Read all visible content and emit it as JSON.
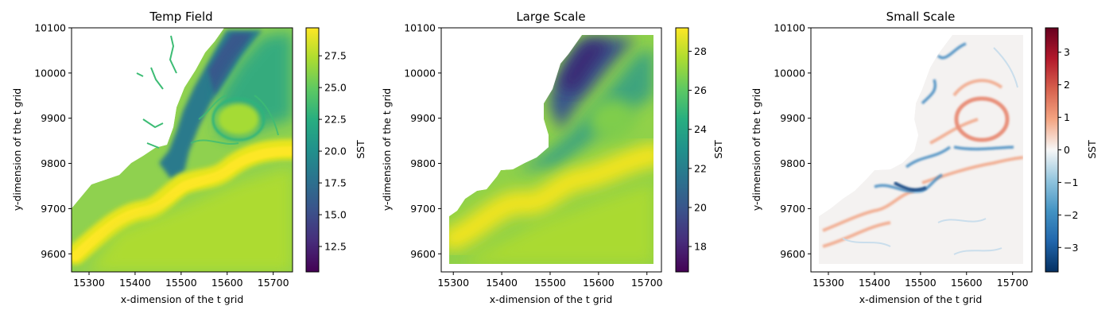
{
  "chart_data": [
    {
      "type": "heatmap",
      "title": "Temp Field",
      "xlabel": "x-dimension of the t grid",
      "ylabel": "y-dimension of the t grid",
      "xlim": [
        15262,
        15742
      ],
      "ylim": [
        9560,
        10100
      ],
      "xticks": [
        15300,
        15400,
        15500,
        15600,
        15700
      ],
      "yticks": [
        9600,
        9700,
        9800,
        9900,
        10000,
        10100
      ],
      "colormap": "viridis",
      "colorbar": {
        "label": "SST",
        "range": [
          10.5,
          29.7
        ],
        "ticks": [
          12.5,
          15.0,
          17.5,
          20.0,
          22.5,
          25.0,
          27.5
        ],
        "tick_labels": [
          "12.5",
          "15.0",
          "17.5",
          "20.0",
          "22.5",
          "25.0",
          "27.5"
        ]
      },
      "features": [
        "land (white) in upper-left",
        "warm Gulf Stream jet (~28-29) meandering from lower-left to right",
        "cold shelf water (~15-19) along coast",
        "warm-core eddy near (15610, 9970)"
      ]
    },
    {
      "type": "heatmap",
      "title": "Large Scale",
      "xlabel": "x-dimension of the t grid",
      "ylabel": "y-dimension of the t grid",
      "xlim": [
        15275,
        15730
      ],
      "ylim": [
        9560,
        10100
      ],
      "xticks": [
        15300,
        15400,
        15500,
        15600,
        15700
      ],
      "yticks": [
        9600,
        9700,
        9800,
        9900,
        10000,
        10100
      ],
      "colormap": "viridis",
      "colorbar": {
        "label": "SST",
        "range": [
          16.7,
          29.2
        ],
        "ticks": [
          18,
          20,
          22,
          24,
          26,
          28
        ],
        "tick_labels": [
          "18",
          "20",
          "22",
          "24",
          "26",
          "28"
        ]
      },
      "features": [
        "smoothed version of Temp Field over cropped domain x 15285-15720, y 9580-10075"
      ]
    },
    {
      "type": "heatmap",
      "title": "Small Scale",
      "xlabel": "x-dimension of the t grid",
      "ylabel": "y-dimension of the t grid",
      "xlim": [
        15262,
        15742
      ],
      "ylim": [
        9560,
        10100
      ],
      "xticks": [
        15300,
        15400,
        15500,
        15600,
        15700
      ],
      "yticks": [
        9600,
        9700,
        9800,
        9900,
        10000,
        10100
      ],
      "colormap": "RdBu_r",
      "colorbar": {
        "label": "SST",
        "range": [
          -3.75,
          3.75
        ],
        "ticks": [
          -3,
          -2,
          -1,
          0,
          1,
          2,
          3
        ],
        "tick_labels": [
          "−3",
          "−2",
          "−1",
          "0",
          "1",
          "2",
          "3"
        ]
      },
      "features": [
        "residual anomalies mostly near 0",
        "strong negative filaments along front near (15500, 9770)",
        "positive ring around eddy near (15610, 9970)"
      ]
    }
  ]
}
